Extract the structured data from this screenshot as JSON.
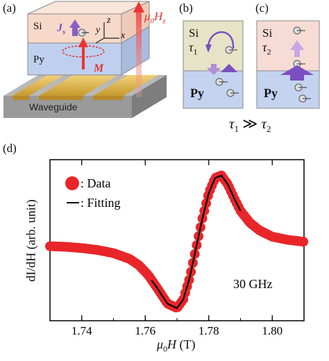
{
  "panels": {
    "a": {
      "label": "(a)",
      "si": "Si",
      "py": "Py",
      "js": "J",
      "js_sub": "s",
      "m": "M",
      "field": "μ",
      "field_sub": "0",
      "field_h": "H",
      "field_hsub": "z",
      "axis_x": "x",
      "axis_y": "y",
      "axis_z": "z",
      "waveguide": "Waveguide"
    },
    "b": {
      "label": "(b)",
      "si": "Si",
      "tau": "τ",
      "tau_sub": "1",
      "py": "Py"
    },
    "c": {
      "label": "(c)",
      "si": "Si",
      "tau": "τ",
      "tau_sub": "2",
      "py": "Py"
    },
    "relation": {
      "tau": "τ",
      "s1": "1",
      "op": "≫",
      "s2": "2"
    },
    "d": {
      "label": "(d)",
      "legend_data": ": Data",
      "legend_fit": ": Fitting",
      "freq": "30 GHz",
      "ylabel": "dI/dH (arb. unit)",
      "xlabel_mu": "μ",
      "xlabel_sub": "0",
      "xlabel_rest": "H (T)"
    }
  },
  "chart_data": {
    "type": "scatter",
    "title": "",
    "xlabel": "μ0H (T)",
    "ylabel": "dI/dH (arb. unit)",
    "xlim": [
      1.73,
      1.81
    ],
    "ylim": [
      -1.2,
      1.35
    ],
    "xticks": [
      "1.74",
      "1.76",
      "1.78",
      "1.80"
    ],
    "xtick_values": [
      1.74,
      1.76,
      1.78,
      1.8
    ],
    "annotation": "30 GHz",
    "colors": {
      "data": "#e8262a",
      "fit": "#000000"
    },
    "series": [
      {
        "name": "Data",
        "kind": "marker",
        "x": [
          1.73,
          1.735,
          1.74,
          1.745,
          1.75,
          1.755,
          1.758,
          1.761,
          1.764,
          1.767,
          1.77,
          1.772,
          1.774,
          1.776,
          1.778,
          1.78,
          1.782,
          1.784,
          1.786,
          1.788,
          1.79,
          1.793,
          1.796,
          1.8,
          1.805,
          1.81
        ],
        "y": [
          -0.02,
          -0.03,
          -0.05,
          -0.08,
          -0.13,
          -0.22,
          -0.32,
          -0.48,
          -0.7,
          -0.93,
          -1.0,
          -0.86,
          -0.52,
          -0.05,
          0.42,
          0.82,
          1.06,
          1.1,
          0.96,
          0.74,
          0.54,
          0.35,
          0.23,
          0.13,
          0.08,
          0.05
        ]
      },
      {
        "name": "Fitting",
        "kind": "line",
        "x": [
          1.762,
          1.764,
          1.767,
          1.77,
          1.772,
          1.774,
          1.776,
          1.778,
          1.78,
          1.782,
          1.784,
          1.786,
          1.788,
          1.79
        ],
        "y": [
          -0.56,
          -0.7,
          -0.93,
          -1.0,
          -0.86,
          -0.52,
          -0.05,
          0.42,
          0.82,
          1.06,
          1.1,
          0.96,
          0.74,
          0.54
        ]
      }
    ]
  }
}
